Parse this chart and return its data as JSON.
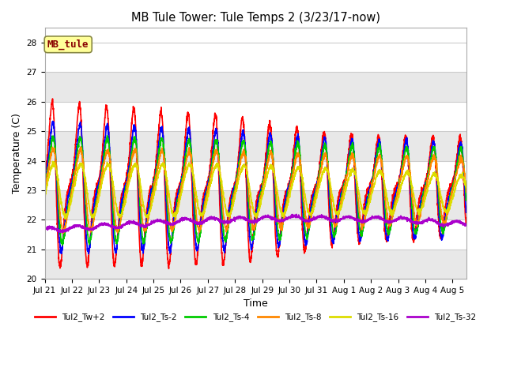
{
  "title": "MB Tule Tower: Tule Temps 2 (3/23/17-now)",
  "xlabel": "Time",
  "ylabel": "Temperature (C)",
  "ylim": [
    20.0,
    28.5
  ],
  "yticks": [
    20.0,
    21.0,
    22.0,
    23.0,
    24.0,
    25.0,
    26.0,
    27.0,
    28.0
  ],
  "series": [
    {
      "label": "Tul2_Tw+2",
      "color": "#ff0000"
    },
    {
      "label": "Tul2_Ts-2",
      "color": "#0000ff"
    },
    {
      "label": "Tul2_Ts-4",
      "color": "#00cc00"
    },
    {
      "label": "Tul2_Ts-8",
      "color": "#ff8800"
    },
    {
      "label": "Tul2_Ts-16",
      "color": "#dddd00"
    },
    {
      "label": "Tul2_Ts-32",
      "color": "#aa00cc"
    }
  ],
  "annotation_text": "MB_tule",
  "annotation_color": "#880000",
  "annotation_bg": "#ffff99",
  "xtick_labels": [
    "Jul 21",
    "Jul 22",
    "Jul 23",
    "Jul 24",
    "Jul 25",
    "Jul 26",
    "Jul 27",
    "Jul 28",
    "Jul 29",
    "Jul 30",
    "Jul 31",
    "Aug 1",
    "Aug 2",
    "Aug 3",
    "Aug 4",
    "Aug 5"
  ],
  "xtick_positions": [
    1,
    2,
    3,
    4,
    5,
    6,
    7,
    8,
    9,
    10,
    11,
    12,
    13,
    14,
    15,
    16
  ],
  "background_color": "#ffffff",
  "grid_color": "#cccccc",
  "band_color": "#e8e8e8"
}
